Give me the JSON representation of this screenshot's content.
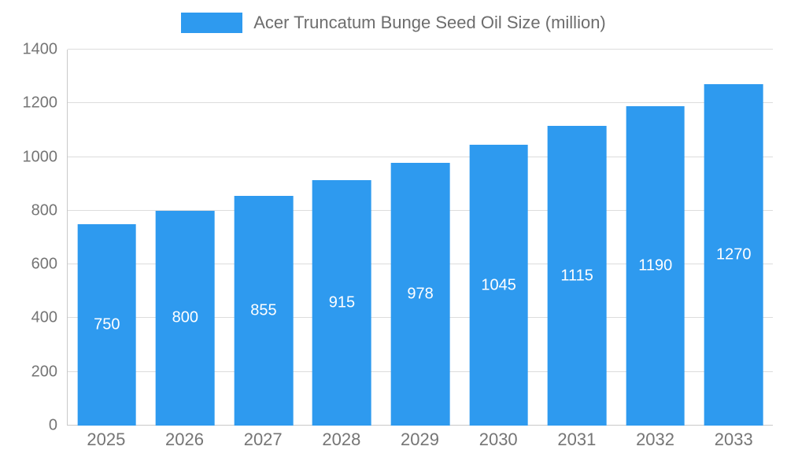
{
  "chart_data": {
    "type": "bar",
    "title": "Acer Truncatum Bunge Seed Oil Size (million)",
    "categories": [
      "2025",
      "2026",
      "2027",
      "2028",
      "2029",
      "2030",
      "2031",
      "2032",
      "2033"
    ],
    "values": [
      750,
      800,
      855,
      915,
      978,
      1045,
      1115,
      1190,
      1270
    ],
    "xlabel": "",
    "ylabel": "",
    "ylim": [
      0,
      1400
    ],
    "y_tick_step": 200,
    "y_tick_labels": [
      "0",
      "200",
      "400",
      "600",
      "800",
      "1000",
      "1200",
      "1400"
    ],
    "grid": true,
    "legend_position": "top",
    "bar_color": "#2e9aef",
    "value_label_color": "#ffffff",
    "axis_label_color": "#757575",
    "title_color": "#6d6d6d",
    "gridline_color": "#dcdcdc"
  }
}
